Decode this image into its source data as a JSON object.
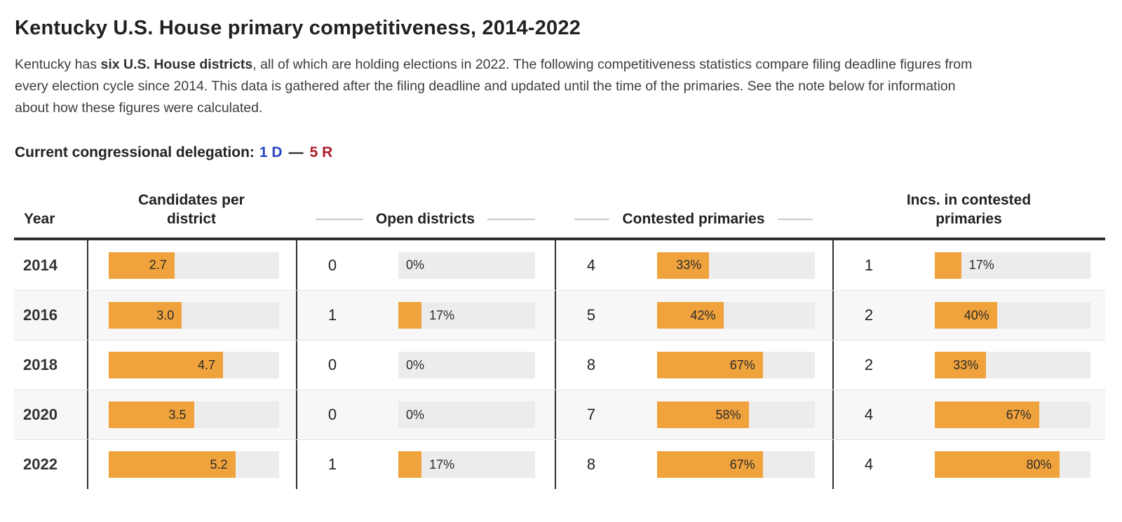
{
  "page": {
    "title": "Kentucky U.S. House primary competitiveness, 2014-2022",
    "intro": {
      "line1_pre": "Kentucky has ",
      "line1_bold": "six U.S. House districts",
      "line1_post": ", all of which are holding elections in 2022. The following competitiveness statistics compare filing deadline figures from",
      "line2": "every election cycle since 2014. This data is gathered after the filing deadline and updated until the time of the primaries. See the note below for information",
      "line3": "about how these figures were calculated."
    },
    "delegation": {
      "label": "Current congressional delegation:",
      "dem": "1 D",
      "separator": "—",
      "rep": "5 R"
    },
    "colors": {
      "bar_orange": "#F0A23C",
      "bar_track": "#ECECEC",
      "dem_blue": "#2B44C4",
      "rep_red": "#AD1F2D",
      "row_stripe": "#F7F7F7"
    }
  },
  "table": {
    "headers": {
      "year": "Year",
      "col2_line1": "Candidates per",
      "col2_line2": "district",
      "col3": "Open districts",
      "col4": "Contested primaries",
      "col5_line1": "Incs. in contested",
      "col5_line2": "primaries"
    },
    "rows": [
      {
        "year": "2014",
        "cpd": {
          "pct": 38.6,
          "label": "2.7",
          "label_pos": "in"
        },
        "open": {
          "count": "0",
          "pct": 0,
          "label": "0%",
          "label_pos": "out"
        },
        "contested": {
          "count": "4",
          "pct": 33,
          "label": "33%",
          "label_pos": "in"
        },
        "incs": {
          "count": "1",
          "pct": 17,
          "label": "17%",
          "label_pos": "out"
        }
      },
      {
        "year": "2016",
        "cpd": {
          "pct": 42.9,
          "label": "3.0",
          "label_pos": "in"
        },
        "open": {
          "count": "1",
          "pct": 17,
          "label": "17%",
          "label_pos": "out"
        },
        "contested": {
          "count": "5",
          "pct": 42,
          "label": "42%",
          "label_pos": "in"
        },
        "incs": {
          "count": "2",
          "pct": 40,
          "label": "40%",
          "label_pos": "in"
        }
      },
      {
        "year": "2018",
        "cpd": {
          "pct": 67.1,
          "label": "4.7",
          "label_pos": "in"
        },
        "open": {
          "count": "0",
          "pct": 0,
          "label": "0%",
          "label_pos": "out"
        },
        "contested": {
          "count": "8",
          "pct": 67,
          "label": "67%",
          "label_pos": "in"
        },
        "incs": {
          "count": "2",
          "pct": 33,
          "label": "33%",
          "label_pos": "in"
        }
      },
      {
        "year": "2020",
        "cpd": {
          "pct": 50,
          "label": "3.5",
          "label_pos": "in"
        },
        "open": {
          "count": "0",
          "pct": 0,
          "label": "0%",
          "label_pos": "out"
        },
        "contested": {
          "count": "7",
          "pct": 58,
          "label": "58%",
          "label_pos": "in"
        },
        "incs": {
          "count": "4",
          "pct": 67,
          "label": "67%",
          "label_pos": "in"
        }
      },
      {
        "year": "2022",
        "cpd": {
          "pct": 74.3,
          "label": "5.2",
          "label_pos": "in"
        },
        "open": {
          "count": "1",
          "pct": 17,
          "label": "17%",
          "label_pos": "out"
        },
        "contested": {
          "count": "8",
          "pct": 67,
          "label": "67%",
          "label_pos": "in"
        },
        "incs": {
          "count": "4",
          "pct": 80,
          "label": "80%",
          "label_pos": "in"
        }
      }
    ]
  },
  "chart_data": {
    "type": "table",
    "title": "Kentucky U.S. House primary competitiveness, 2014-2022",
    "categories": [
      "2014",
      "2016",
      "2018",
      "2020",
      "2022"
    ],
    "series": [
      {
        "name": "Candidates per district",
        "type": "bar",
        "values": [
          2.7,
          3.0,
          4.7,
          3.5,
          5.2
        ],
        "bar_scale_max": 7
      },
      {
        "name": "Open districts",
        "type": "bar",
        "counts": [
          0,
          1,
          0,
          0,
          1
        ],
        "percent": [
          0,
          17,
          0,
          0,
          17
        ]
      },
      {
        "name": "Contested primaries",
        "type": "bar",
        "counts": [
          4,
          5,
          8,
          7,
          8
        ],
        "percent": [
          33,
          42,
          67,
          58,
          67
        ]
      },
      {
        "name": "Incs. in contested primaries",
        "type": "bar",
        "counts": [
          1,
          2,
          2,
          4,
          4
        ],
        "percent": [
          17,
          40,
          33,
          67,
          80
        ]
      }
    ],
    "legend_position": "none",
    "grid": false,
    "bar_color": "#F0A23C",
    "track_color": "#ECECEC"
  }
}
